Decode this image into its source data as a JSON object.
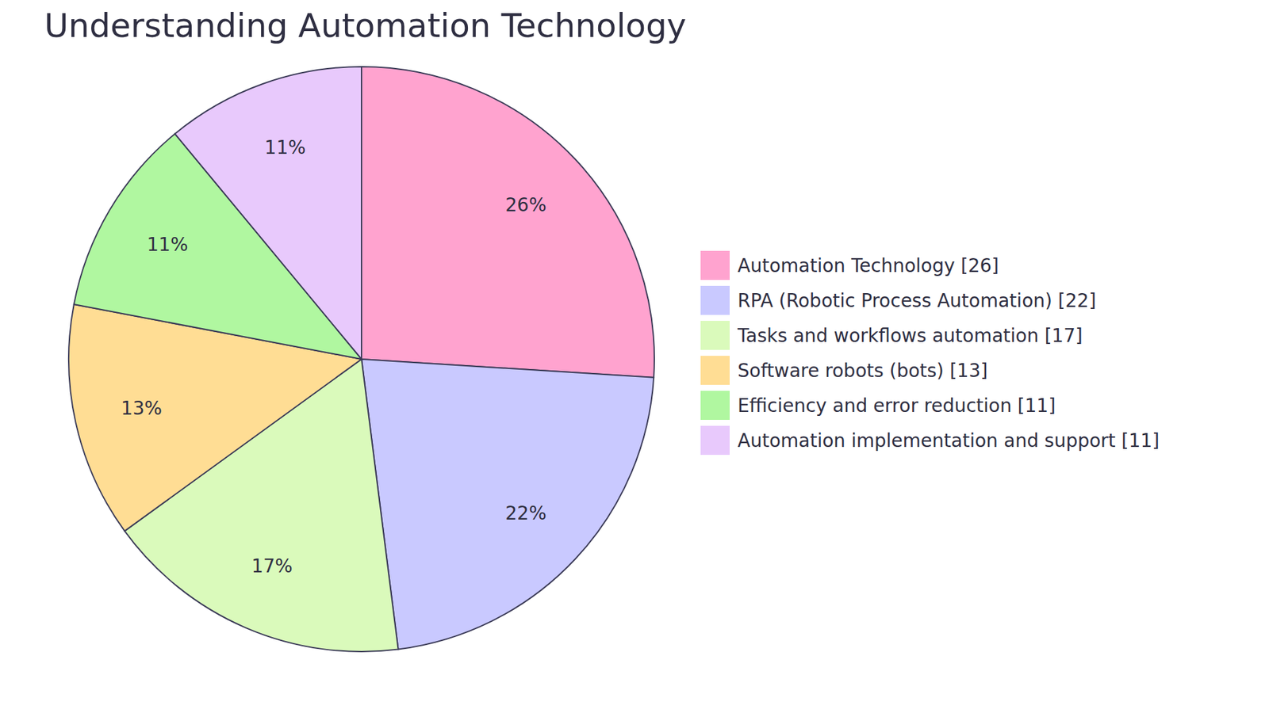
{
  "chart_data": {
    "type": "pie",
    "title": "Understanding Automation Technology",
    "categories": [
      "Automation Technology [26]",
      "RPA (Robotic Process Automation) [22]",
      "Tasks and workflows automation [17]",
      "Software robots (bots) [13]",
      "Efficiency and error reduction [11]",
      "Automation implementation and support [11]"
    ],
    "values": [
      26,
      22,
      17,
      13,
      11,
      11
    ],
    "value_labels": [
      "26%",
      "22%",
      "17%",
      "13%",
      "11%",
      "11%"
    ],
    "colors": [
      "#ffa3cf",
      "#c9c9ff",
      "#dafabb",
      "#ffdd94",
      "#b0f7a0",
      "#e8c9fc"
    ],
    "data_labels": true,
    "legend": "right"
  }
}
